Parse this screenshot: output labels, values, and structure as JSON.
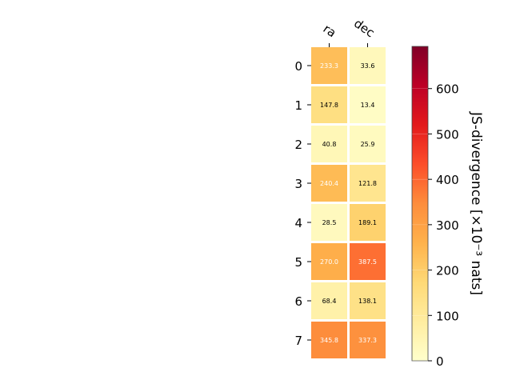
{
  "chart_data": {
    "type": "heatmap",
    "columns": [
      "ra",
      "dec"
    ],
    "rows": [
      "0",
      "1",
      "2",
      "3",
      "4",
      "5",
      "6",
      "7"
    ],
    "values": [
      [
        233.3,
        33.6
      ],
      [
        147.8,
        13.4
      ],
      [
        40.8,
        25.9
      ],
      [
        240.4,
        121.8
      ],
      [
        28.5,
        189.1
      ],
      [
        270.0,
        387.5
      ],
      [
        68.4,
        138.1
      ],
      [
        345.8,
        337.3
      ]
    ],
    "value_labels": [
      [
        "233.3",
        "33.6"
      ],
      [
        "147.8",
        "13.4"
      ],
      [
        "40.8",
        "25.9"
      ],
      [
        "240.4",
        "121.8"
      ],
      [
        "28.5",
        "189.1"
      ],
      [
        "270.0",
        "387.5"
      ],
      [
        "68.4",
        "138.1"
      ],
      [
        "345.8",
        "337.3"
      ]
    ],
    "colorbar": {
      "label": "JS-divergence [×10⁻³ nats]",
      "range": [
        0,
        693
      ],
      "ticks": [
        0,
        100,
        200,
        300,
        400,
        500,
        600
      ],
      "tick_labels": [
        "0",
        "100",
        "200",
        "300",
        "400",
        "500",
        "600"
      ],
      "colormap": "YlOrRd",
      "position": "right"
    },
    "grid": false
  }
}
